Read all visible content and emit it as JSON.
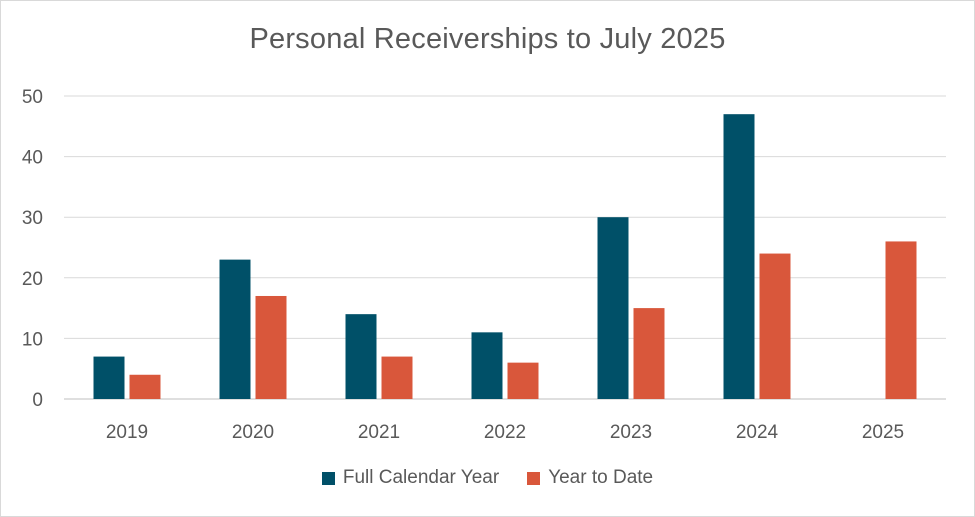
{
  "chart_data": {
    "type": "bar",
    "title": "Personal Receiverships to July 2025",
    "xlabel": "",
    "ylabel": "",
    "categories": [
      "2019",
      "2020",
      "2021",
      "2022",
      "2023",
      "2024",
      "2025"
    ],
    "series": [
      {
        "name": "Full Calendar Year",
        "color": "#005068",
        "values": [
          7,
          23,
          14,
          11,
          30,
          47,
          null
        ]
      },
      {
        "name": "Year to Date",
        "color": "#d9573b",
        "values": [
          4,
          17,
          7,
          6,
          15,
          24,
          26
        ]
      }
    ],
    "ylim": [
      0,
      50
    ],
    "yticks": [
      "0",
      "10",
      "20",
      "30",
      "40",
      "50"
    ],
    "grid": true,
    "legend_position": "bottom"
  }
}
